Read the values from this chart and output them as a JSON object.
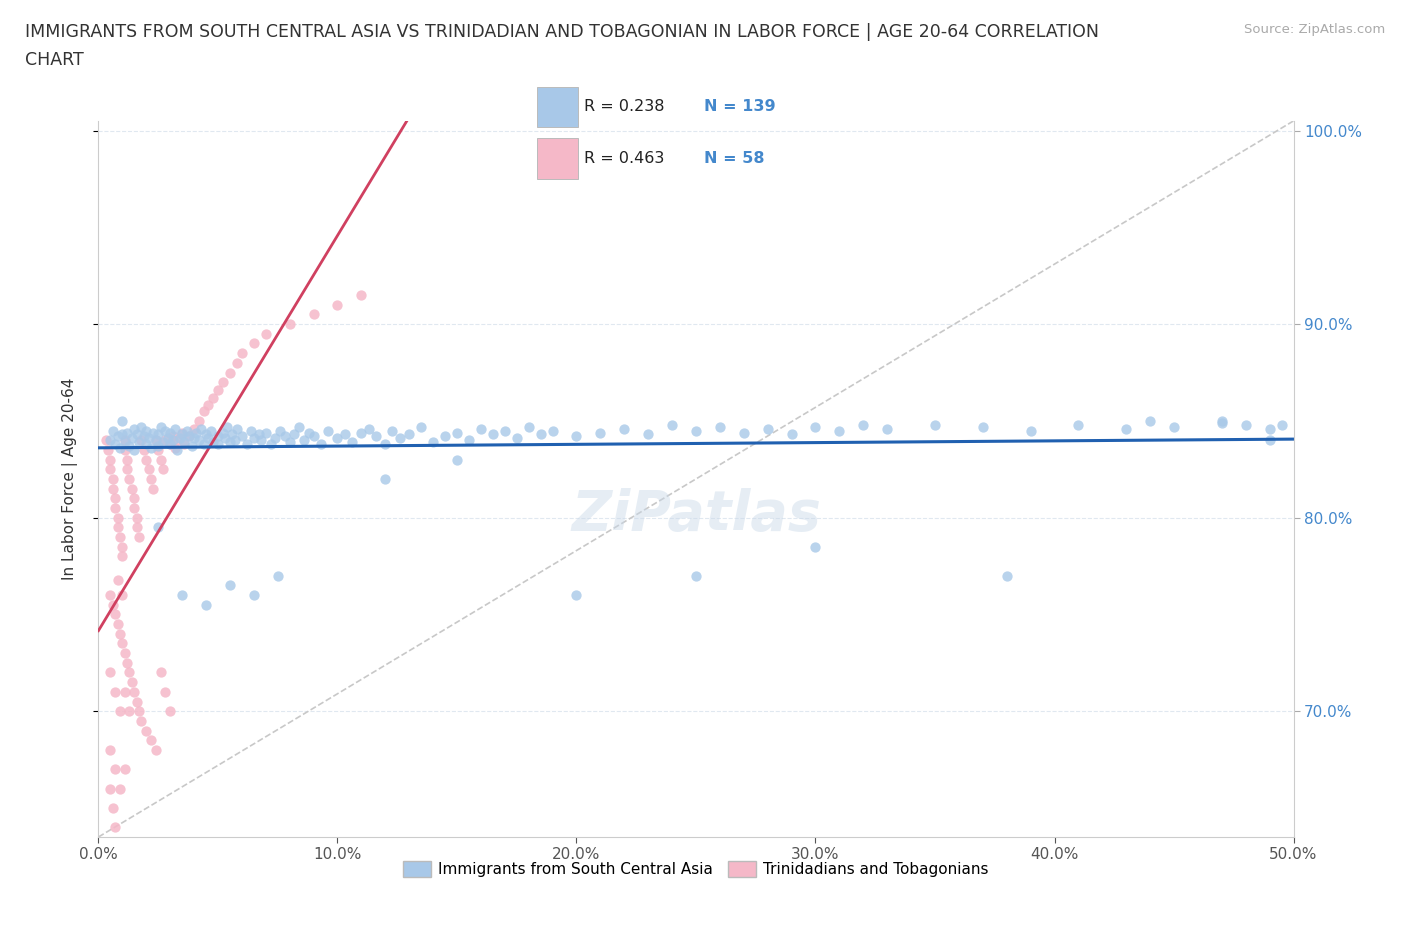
{
  "title_line1": "IMMIGRANTS FROM SOUTH CENTRAL ASIA VS TRINIDADIAN AND TOBAGONIAN IN LABOR FORCE | AGE 20-64 CORRELATION",
  "title_line2": "CHART",
  "source_text": "Source: ZipAtlas.com",
  "ylabel": "In Labor Force | Age 20-64",
  "xlim": [
    0.0,
    0.5
  ],
  "ylim": [
    0.635,
    1.005
  ],
  "xtick_vals": [
    0.0,
    0.1,
    0.2,
    0.3,
    0.4,
    0.5
  ],
  "xtick_labels": [
    "0.0%",
    "10.0%",
    "20.0%",
    "30.0%",
    "40.0%",
    "50.0%"
  ],
  "ytick_vals": [
    0.7,
    0.8,
    0.9,
    1.0
  ],
  "ytick_labels": [
    "70.0%",
    "80.0%",
    "90.0%",
    "100.0%"
  ],
  "blue_fill": "#a8c8e8",
  "pink_fill": "#f5b8c8",
  "blue_line": "#2060b0",
  "pink_line": "#d04060",
  "ref_line": "#c8c8c8",
  "text_color": "#333333",
  "axis_color": "#4488cc",
  "grid_color": "#e0e8f0",
  "R_blue": "0.238",
  "N_blue": "139",
  "R_pink": "0.463",
  "N_pink": "58",
  "legend_label_blue": "Immigrants from South Central Asia",
  "legend_label_pink": "Trinidadians and Tobagonians",
  "watermark": "ZiPatlas",
  "blue_x": [
    0.005,
    0.006,
    0.007,
    0.008,
    0.009,
    0.01,
    0.01,
    0.011,
    0.012,
    0.013,
    0.014,
    0.015,
    0.015,
    0.016,
    0.017,
    0.018,
    0.019,
    0.02,
    0.02,
    0.021,
    0.022,
    0.023,
    0.024,
    0.025,
    0.025,
    0.026,
    0.027,
    0.028,
    0.029,
    0.03,
    0.03,
    0.031,
    0.032,
    0.033,
    0.034,
    0.035,
    0.036,
    0.037,
    0.038,
    0.039,
    0.04,
    0.041,
    0.042,
    0.043,
    0.044,
    0.045,
    0.046,
    0.047,
    0.048,
    0.05,
    0.05,
    0.052,
    0.053,
    0.054,
    0.055,
    0.056,
    0.057,
    0.058,
    0.06,
    0.062,
    0.064,
    0.065,
    0.067,
    0.068,
    0.07,
    0.072,
    0.074,
    0.076,
    0.078,
    0.08,
    0.082,
    0.084,
    0.086,
    0.088,
    0.09,
    0.093,
    0.096,
    0.1,
    0.103,
    0.106,
    0.11,
    0.113,
    0.116,
    0.12,
    0.123,
    0.126,
    0.13,
    0.135,
    0.14,
    0.145,
    0.15,
    0.155,
    0.16,
    0.165,
    0.17,
    0.175,
    0.18,
    0.185,
    0.19,
    0.2,
    0.21,
    0.22,
    0.23,
    0.24,
    0.25,
    0.26,
    0.27,
    0.28,
    0.29,
    0.3,
    0.31,
    0.32,
    0.33,
    0.35,
    0.37,
    0.39,
    0.41,
    0.43,
    0.45,
    0.47,
    0.48,
    0.49,
    0.495,
    0.025,
    0.035,
    0.045,
    0.055,
    0.065,
    0.075,
    0.12,
    0.15,
    0.2,
    0.25,
    0.3,
    0.38,
    0.44,
    0.47,
    0.49
  ],
  "blue_y": [
    0.84,
    0.845,
    0.838,
    0.842,
    0.836,
    0.843,
    0.85,
    0.839,
    0.844,
    0.837,
    0.841,
    0.846,
    0.835,
    0.843,
    0.839,
    0.847,
    0.842,
    0.838,
    0.845,
    0.841,
    0.836,
    0.844,
    0.84,
    0.837,
    0.843,
    0.847,
    0.839,
    0.845,
    0.841,
    0.838,
    0.844,
    0.84,
    0.846,
    0.835,
    0.841,
    0.843,
    0.839,
    0.845,
    0.842,
    0.837,
    0.841,
    0.844,
    0.84,
    0.846,
    0.838,
    0.843,
    0.841,
    0.845,
    0.839,
    0.842,
    0.838,
    0.844,
    0.841,
    0.847,
    0.839,
    0.843,
    0.84,
    0.846,
    0.842,
    0.838,
    0.845,
    0.841,
    0.843,
    0.84,
    0.844,
    0.838,
    0.841,
    0.845,
    0.842,
    0.839,
    0.843,
    0.847,
    0.84,
    0.844,
    0.842,
    0.838,
    0.845,
    0.841,
    0.843,
    0.839,
    0.844,
    0.846,
    0.842,
    0.838,
    0.845,
    0.841,
    0.843,
    0.847,
    0.839,
    0.842,
    0.844,
    0.84,
    0.846,
    0.843,
    0.845,
    0.841,
    0.847,
    0.843,
    0.845,
    0.842,
    0.844,
    0.846,
    0.843,
    0.848,
    0.845,
    0.847,
    0.844,
    0.846,
    0.843,
    0.847,
    0.845,
    0.848,
    0.846,
    0.848,
    0.847,
    0.845,
    0.848,
    0.846,
    0.847,
    0.849,
    0.848,
    0.846,
    0.848,
    0.795,
    0.76,
    0.755,
    0.765,
    0.76,
    0.77,
    0.82,
    0.83,
    0.76,
    0.77,
    0.785,
    0.77,
    0.85,
    0.85,
    0.84
  ],
  "pink_x": [
    0.003,
    0.004,
    0.005,
    0.005,
    0.006,
    0.006,
    0.007,
    0.007,
    0.008,
    0.008,
    0.009,
    0.01,
    0.01,
    0.011,
    0.011,
    0.012,
    0.012,
    0.013,
    0.014,
    0.015,
    0.015,
    0.016,
    0.016,
    0.017,
    0.018,
    0.019,
    0.02,
    0.021,
    0.022,
    0.023,
    0.024,
    0.025,
    0.026,
    0.027,
    0.028,
    0.03,
    0.031,
    0.032,
    0.033,
    0.035,
    0.036,
    0.038,
    0.04,
    0.042,
    0.044,
    0.046,
    0.048,
    0.05,
    0.052,
    0.055,
    0.058,
    0.06,
    0.065,
    0.07,
    0.08,
    0.09,
    0.1,
    0.11
  ],
  "pink_y": [
    0.84,
    0.835,
    0.83,
    0.825,
    0.82,
    0.815,
    0.81,
    0.805,
    0.8,
    0.795,
    0.79,
    0.785,
    0.78,
    0.84,
    0.835,
    0.83,
    0.825,
    0.82,
    0.815,
    0.81,
    0.805,
    0.8,
    0.795,
    0.79,
    0.84,
    0.835,
    0.83,
    0.825,
    0.82,
    0.815,
    0.84,
    0.835,
    0.83,
    0.825,
    0.84,
    0.838,
    0.842,
    0.836,
    0.84,
    0.844,
    0.838,
    0.842,
    0.846,
    0.85,
    0.855,
    0.858,
    0.862,
    0.866,
    0.87,
    0.875,
    0.88,
    0.885,
    0.89,
    0.895,
    0.9,
    0.905,
    0.91,
    0.915
  ],
  "pink_extra_low_x": [
    0.005,
    0.006,
    0.007,
    0.008,
    0.008,
    0.009,
    0.01,
    0.01,
    0.011,
    0.012,
    0.013,
    0.014,
    0.015,
    0.016,
    0.017,
    0.018,
    0.02,
    0.022,
    0.024,
    0.026,
    0.028,
    0.03,
    0.005,
    0.007,
    0.009,
    0.011,
    0.013,
    0.005,
    0.007,
    0.009,
    0.011,
    0.005,
    0.006,
    0.007
  ],
  "pink_extra_low_y": [
    0.76,
    0.755,
    0.75,
    0.745,
    0.768,
    0.74,
    0.735,
    0.76,
    0.73,
    0.725,
    0.72,
    0.715,
    0.71,
    0.705,
    0.7,
    0.695,
    0.69,
    0.685,
    0.68,
    0.72,
    0.71,
    0.7,
    0.72,
    0.71,
    0.7,
    0.71,
    0.7,
    0.68,
    0.67,
    0.66,
    0.67,
    0.66,
    0.65,
    0.64
  ]
}
